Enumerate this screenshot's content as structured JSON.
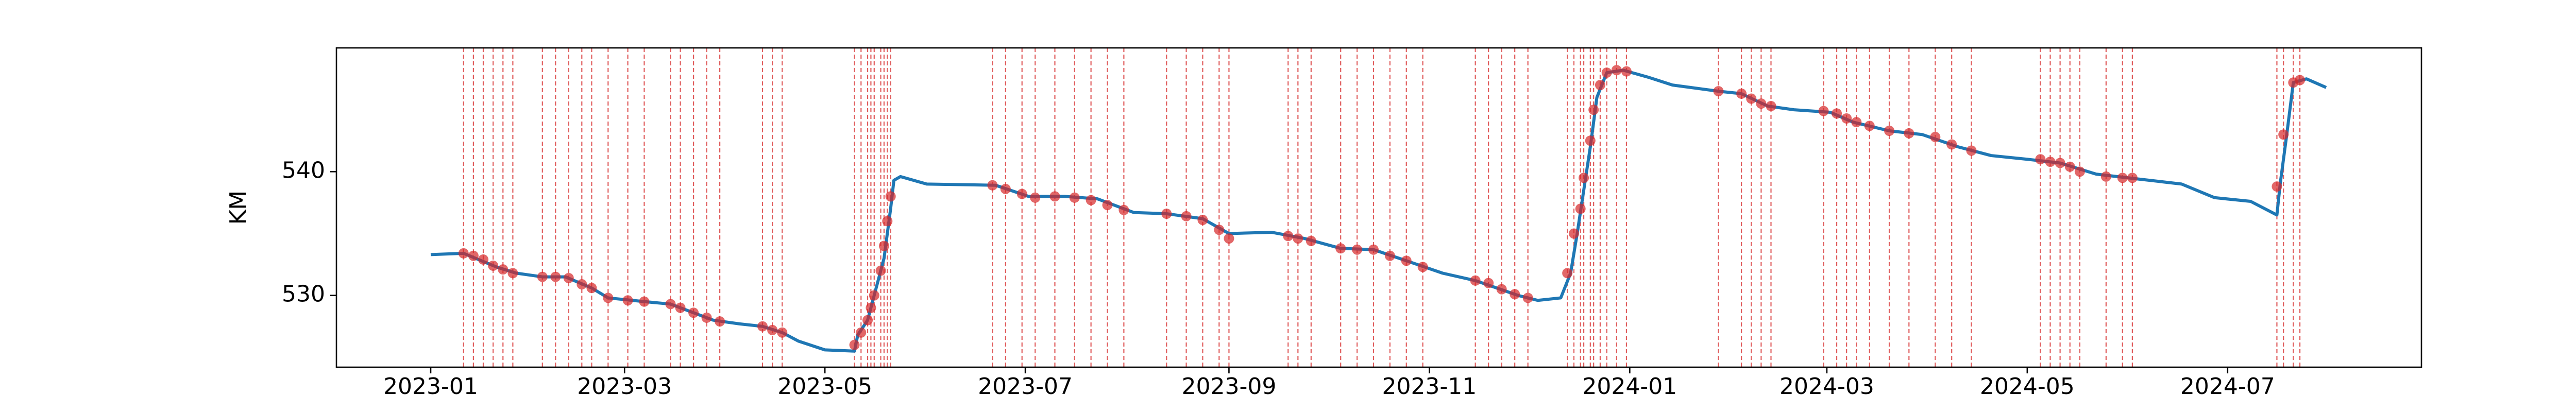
{
  "chart_data": {
    "type": "line",
    "y_label": "KM",
    "color": "#1f77b4",
    "x": [
      0,
      10,
      20,
      26,
      34,
      41,
      49,
      54,
      65,
      73,
      78,
      86,
      94,
      101,
      107,
      112,
      120,
      129,
      130,
      133,
      135,
      138,
      140,
      141,
      143,
      151,
      172,
      182,
      193,
      203,
      214,
      224,
      235,
      243,
      256,
      266,
      277,
      287,
      297,
      308,
      318,
      331,
      337,
      344,
      347,
      349,
      351,
      353,
      355,
      358,
      363,
      371,
      378,
      392,
      399,
      407,
      415,
      426,
      433,
      444,
      454,
      465,
      475,
      486,
      496,
      507,
      520,
      533,
      543,
      554,
      562,
      563,
      565,
      567,
      571,
      577
    ],
    "values": [
      533.3,
      533.4,
      532.3,
      531.8,
      531.5,
      531.5,
      530.6,
      529.8,
      529.5,
      529.3,
      528.8,
      528.0,
      527.7,
      527.5,
      527.0,
      526.3,
      525.6,
      525.5,
      526.8,
      528,
      530,
      533,
      537,
      539.3,
      539.6,
      539.0,
      538.9,
      538.0,
      538.0,
      537.8,
      536.7,
      536.6,
      536.2,
      535.0,
      535.1,
      534.6,
      533.8,
      533.7,
      532.8,
      531.8,
      531.2,
      530.0,
      529.6,
      529.8,
      531.8,
      535,
      538.5,
      542,
      546,
      548,
      548.2,
      547.6,
      547.0,
      546.5,
      546.3,
      545.3,
      545.0,
      544.8,
      544.0,
      543.3,
      543.0,
      542.0,
      541.3,
      541.0,
      540.7,
      539.8,
      539.4,
      539.0,
      537.9,
      537.6,
      536.5,
      539,
      543,
      547.2,
      547.5,
      546.8
    ],
    "anomalies": {
      "color": "#d62728",
      "x": [
        10,
        13,
        16,
        19,
        22,
        25,
        34,
        38,
        42,
        46,
        49,
        54,
        60,
        65,
        73,
        76,
        80,
        84,
        88,
        101,
        104,
        107,
        129,
        131,
        133,
        134,
        135,
        137,
        138,
        139,
        140,
        171,
        175,
        180,
        184,
        190,
        196,
        201,
        206,
        211,
        224,
        230,
        235,
        240,
        243,
        261,
        264,
        268,
        277,
        282,
        287,
        292,
        297,
        302,
        318,
        322,
        326,
        330,
        334,
        346,
        348,
        350,
        351,
        353,
        354,
        356,
        358,
        361,
        364,
        392,
        399,
        402,
        405,
        408,
        424,
        428,
        431,
        434,
        438,
        444,
        450,
        458,
        463,
        469,
        490,
        493,
        496,
        499,
        502,
        510,
        515,
        518,
        562,
        564,
        567,
        569
      ],
      "values": [
        533.4,
        533.2,
        532.9,
        532.4,
        532.1,
        531.8,
        531.5,
        531.5,
        531.4,
        530.9,
        530.6,
        529.8,
        529.6,
        529.5,
        529.3,
        529.0,
        528.6,
        528.2,
        527.9,
        527.5,
        527.2,
        527.0,
        526.0,
        527.0,
        528.0,
        529.0,
        530.0,
        532.0,
        534.0,
        536.0,
        538.0,
        538.9,
        538.6,
        538.2,
        537.9,
        538.0,
        537.9,
        537.7,
        537.3,
        536.9,
        536.6,
        536.4,
        536.1,
        535.3,
        534.6,
        534.8,
        534.6,
        534.4,
        533.8,
        533.7,
        533.7,
        533.2,
        532.8,
        532.3,
        531.2,
        531.0,
        530.5,
        530.1,
        529.8,
        531.8,
        535,
        537,
        539.5,
        542.5,
        545,
        547,
        548,
        548.2,
        548.1,
        546.5,
        546.3,
        545.9,
        545.5,
        545.3,
        544.9,
        544.7,
        544.3,
        544.0,
        543.7,
        543.3,
        543.1,
        542.8,
        542.2,
        541.7,
        541.0,
        540.8,
        540.7,
        540.4,
        540.0,
        539.6,
        539.5,
        539.5,
        538.8,
        543.0,
        547.2,
        547.4
      ]
    },
    "xlim": [
      -28.7,
      606
    ],
    "ylim": [
      524.2,
      550
    ],
    "xticks": [
      {
        "value": 0,
        "label": "2023-01"
      },
      {
        "value": 59,
        "label": "2023-03"
      },
      {
        "value": 120,
        "label": "2023-05"
      },
      {
        "value": 181,
        "label": "2023-07"
      },
      {
        "value": 243,
        "label": "2023-09"
      },
      {
        "value": 304,
        "label": "2023-11"
      },
      {
        "value": 365,
        "label": "2024-01"
      },
      {
        "value": 425,
        "label": "2024-03"
      },
      {
        "value": 486,
        "label": "2024-05"
      },
      {
        "value": 547,
        "label": "2024-07"
      }
    ],
    "yticks": [
      530,
      540
    ]
  }
}
